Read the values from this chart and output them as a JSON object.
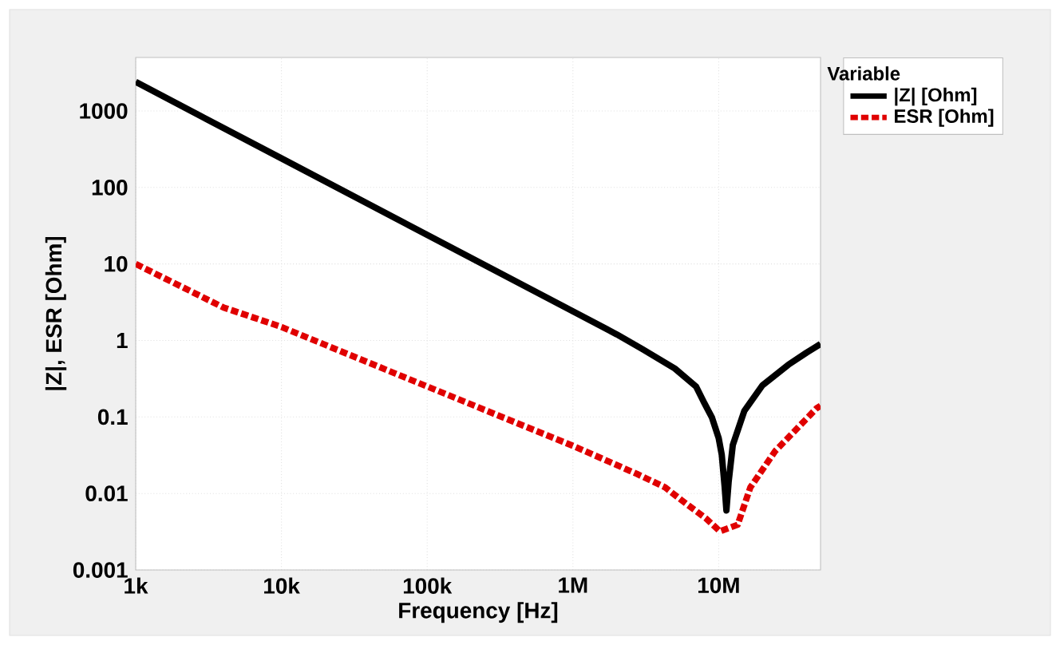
{
  "chart_data": {
    "type": "line",
    "xlabel": "Frequency [Hz]",
    "ylabel": "|Z|, ESR [Ohm]",
    "legend_title": "Variable",
    "legend": "right",
    "log": "xy",
    "grid": true,
    "xlim": [
      1000,
      50000000
    ],
    "ylim": [
      0.001,
      5000
    ],
    "xticks": [
      {
        "value": 1000,
        "label": "1k"
      },
      {
        "value": 10000,
        "label": "10k"
      },
      {
        "value": 100000,
        "label": "100k"
      },
      {
        "value": 1000000,
        "label": "1M"
      },
      {
        "value": 10000000,
        "label": "10M"
      }
    ],
    "yticks": [
      0.001,
      0.01,
      0.1,
      1,
      10,
      100,
      1000
    ],
    "series": [
      {
        "name": "|Z| [Ohm]",
        "color": "#000000",
        "line_style": "solid",
        "x": [
          1000,
          10000,
          100000,
          1000000,
          2000000,
          3000000,
          5000000,
          7000000,
          8000000,
          9000000,
          10000000,
          10500000,
          11000000,
          11300000,
          11700000,
          12500000,
          15000000,
          20000000,
          30000000,
          40000000,
          50000000
        ],
        "values": [
          2400,
          240,
          24,
          2.4,
          1.2,
          0.77,
          0.43,
          0.25,
          0.15,
          0.098,
          0.053,
          0.032,
          0.012,
          0.006,
          0.014,
          0.043,
          0.12,
          0.26,
          0.48,
          0.69,
          0.9
        ]
      },
      {
        "name": "ESR [Ohm]",
        "color": "#e00000",
        "line_style": "dashed",
        "x": [
          1000,
          4000,
          10000,
          100000,
          1000000,
          2750000,
          4300000,
          5500000,
          8200000,
          10200000,
          13500000,
          16500000,
          24500000,
          47000000,
          50000000
        ],
        "values": [
          10,
          2.7,
          1.5,
          0.25,
          0.042,
          0.018,
          0.012,
          0.0083,
          0.0047,
          0.0032,
          0.0039,
          0.012,
          0.036,
          0.13,
          0.14
        ]
      }
    ]
  }
}
